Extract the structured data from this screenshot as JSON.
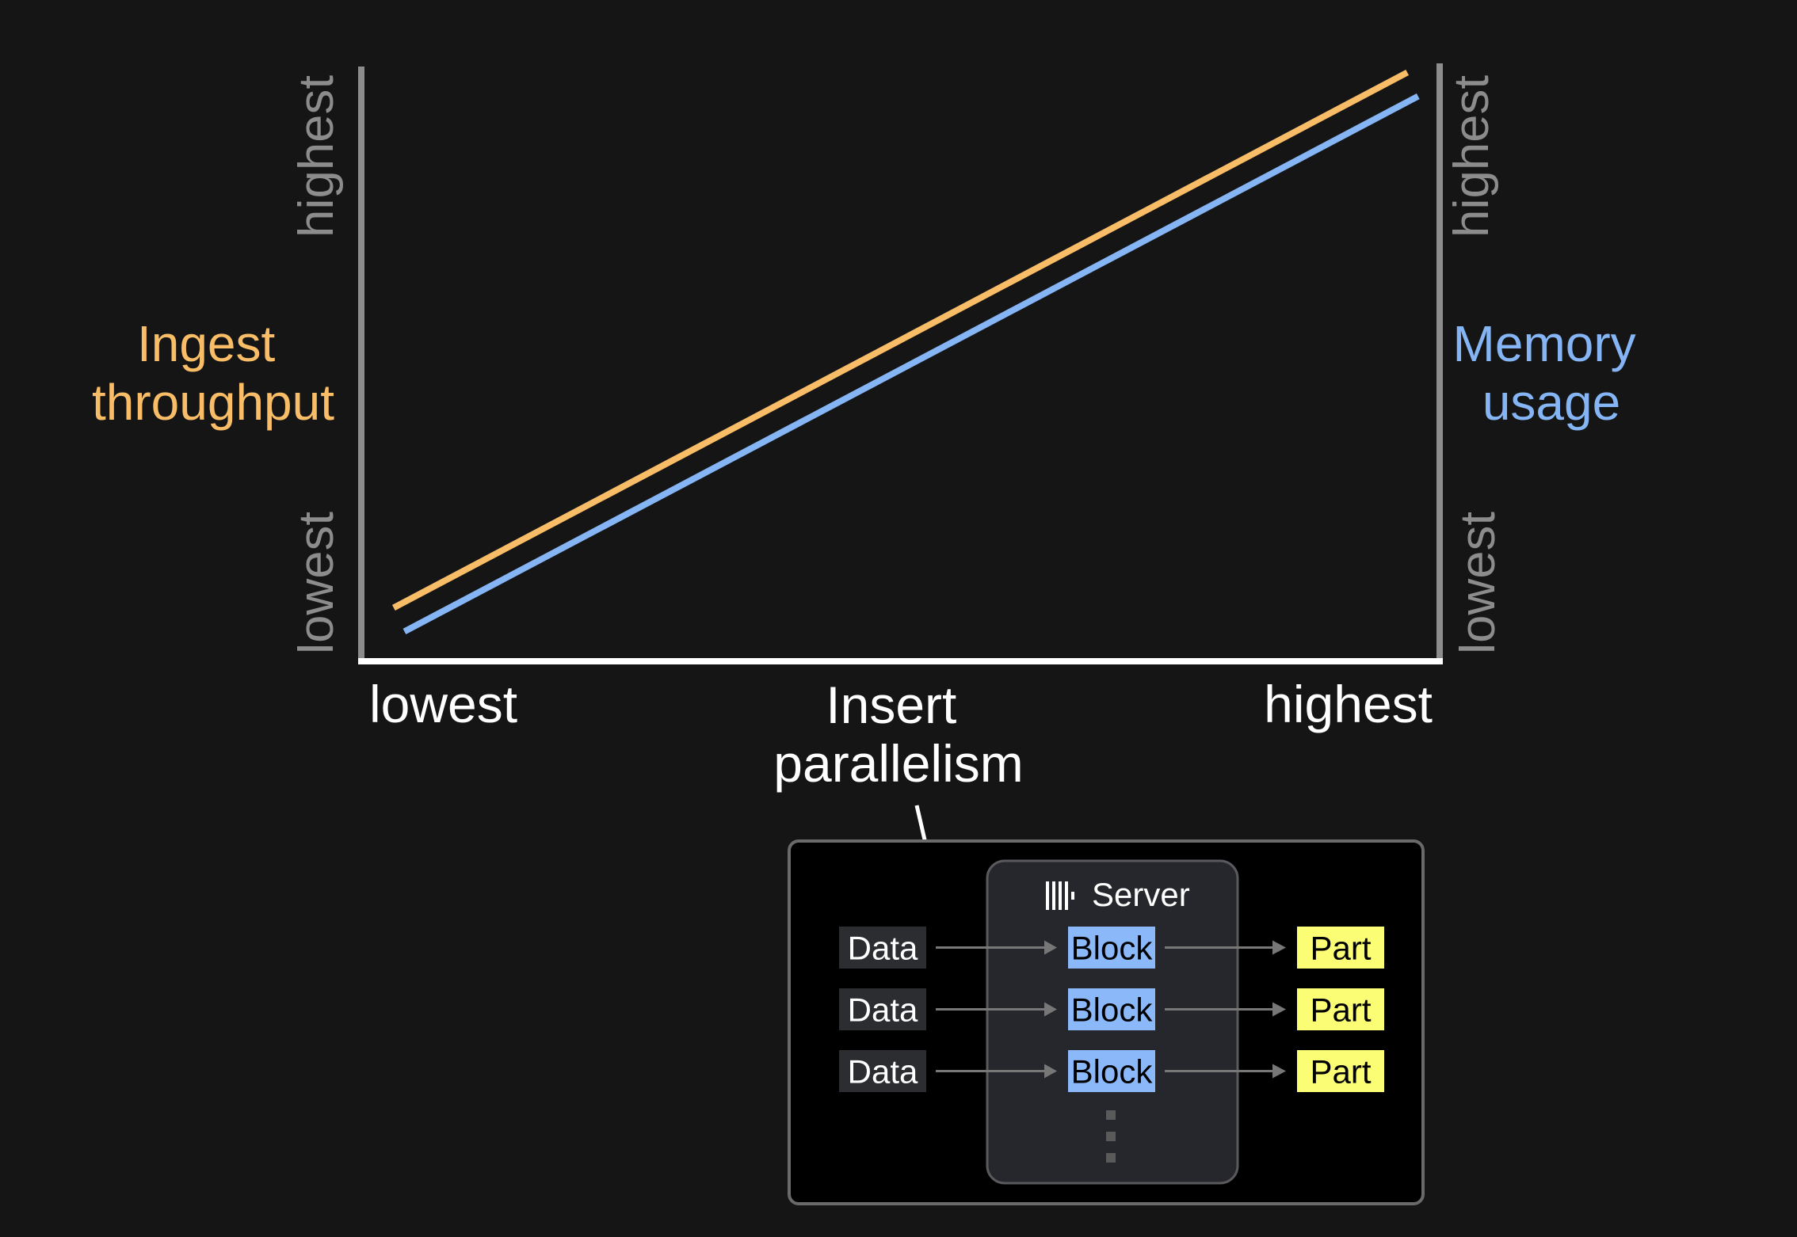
{
  "chart_data": {
    "type": "line",
    "xlabel": "Insert parallelism",
    "x_ticks": [
      "lowest",
      "highest"
    ],
    "y_left": {
      "label": "Ingest throughput",
      "ticks": [
        "lowest",
        "highest"
      ],
      "color": "#f9bd68"
    },
    "y_right": {
      "label": "Memory usage",
      "ticks": [
        "lowest",
        "highest"
      ],
      "color": "#85b5f5"
    },
    "xlim": [
      0,
      1
    ],
    "ylim": [
      0,
      1
    ],
    "grid": false,
    "series": [
      {
        "name": "Ingest throughput",
        "axis": "left",
        "color": "#f9bd68",
        "x": [
          0.03,
          0.97
        ],
        "y": [
          0.09,
          0.99
        ]
      },
      {
        "name": "Memory usage",
        "axis": "right",
        "color": "#85b5f5",
        "x": [
          0.04,
          0.98
        ],
        "y": [
          0.05,
          0.95
        ]
      }
    ]
  },
  "diagram": {
    "server_label": "Server",
    "server_icon": "clickhouse-bars-icon",
    "rows": [
      {
        "input": "Data",
        "block": "Block",
        "output": "Part"
      },
      {
        "input": "Data",
        "block": "Block",
        "output": "Part"
      },
      {
        "input": "Data",
        "block": "Block",
        "output": "Part"
      }
    ],
    "colors": {
      "block": "#8ab8f8",
      "part": "#fbfd74",
      "data": "#2c2d31"
    }
  }
}
